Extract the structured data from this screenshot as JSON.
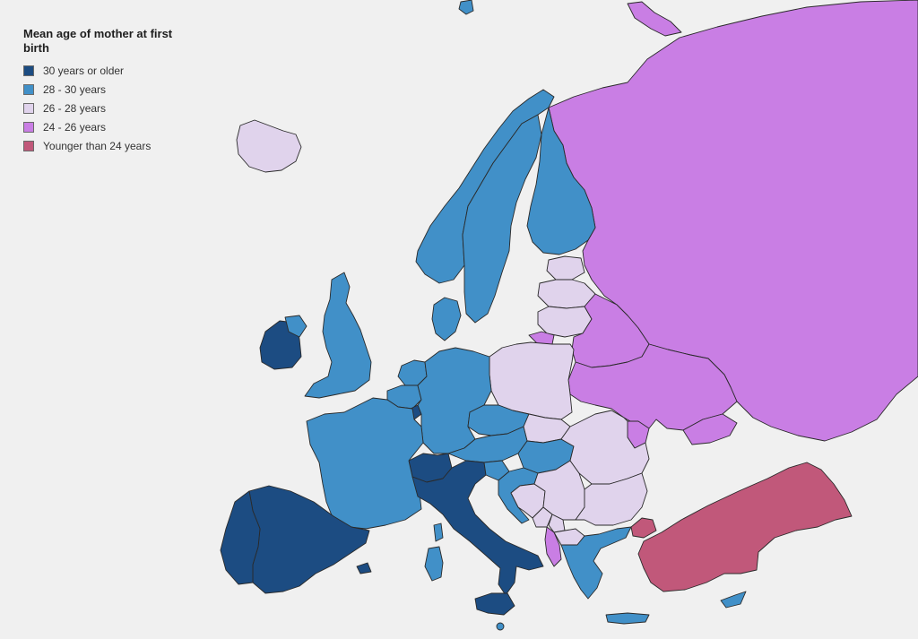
{
  "legend": {
    "title": "Mean age of mother at first birth",
    "items": [
      {
        "key": "c30",
        "label": "30 years or older",
        "color": "#1c4c82"
      },
      {
        "key": "c28",
        "label": "28 - 30 years",
        "color": "#4190c8"
      },
      {
        "key": "c26",
        "label": "26 - 28 years",
        "color": "#e0d3ec"
      },
      {
        "key": "c24",
        "label": "24 - 26 years",
        "color": "#c97ee4"
      },
      {
        "key": "cyoung",
        "label": "Younger than 24 years",
        "color": "#c1587a"
      }
    ]
  },
  "colors": {
    "background": "#f0f0f0",
    "border": "#2a2a2a"
  },
  "regions": [
    {
      "name": "russia",
      "category": "c24"
    },
    {
      "name": "iceland",
      "category": "c26"
    },
    {
      "name": "norway",
      "category": "c28"
    },
    {
      "name": "sweden",
      "category": "c28"
    },
    {
      "name": "finland",
      "category": "c28"
    },
    {
      "name": "denmark",
      "category": "c28"
    },
    {
      "name": "estonia",
      "category": "c26"
    },
    {
      "name": "latvia",
      "category": "c26"
    },
    {
      "name": "lithuania",
      "category": "c26"
    },
    {
      "name": "kaliningrad",
      "category": "c24"
    },
    {
      "name": "belarus",
      "category": "c24"
    },
    {
      "name": "ukraine",
      "category": "c24"
    },
    {
      "name": "moldova",
      "category": "c24"
    },
    {
      "name": "poland",
      "category": "c26"
    },
    {
      "name": "ireland",
      "category": "c30"
    },
    {
      "name": "northern-ireland",
      "category": "c28"
    },
    {
      "name": "united-kingdom",
      "category": "c28"
    },
    {
      "name": "netherlands",
      "category": "c28"
    },
    {
      "name": "belgium",
      "category": "c28"
    },
    {
      "name": "luxembourg",
      "category": "c30"
    },
    {
      "name": "germany",
      "category": "c28"
    },
    {
      "name": "czechia",
      "category": "c28"
    },
    {
      "name": "slovakia",
      "category": "c26"
    },
    {
      "name": "austria",
      "category": "c28"
    },
    {
      "name": "hungary",
      "category": "c28"
    },
    {
      "name": "switzerland",
      "category": "c30"
    },
    {
      "name": "france",
      "category": "c28"
    },
    {
      "name": "spain",
      "category": "c30"
    },
    {
      "name": "portugal",
      "category": "c30"
    },
    {
      "name": "italy",
      "category": "c30"
    },
    {
      "name": "sicily",
      "category": "c30"
    },
    {
      "name": "sardinia",
      "category": "c28"
    },
    {
      "name": "corsica",
      "category": "c28"
    },
    {
      "name": "balearic-islands",
      "category": "c30"
    },
    {
      "name": "slovenia",
      "category": "c28"
    },
    {
      "name": "croatia",
      "category": "c28"
    },
    {
      "name": "bosnia",
      "category": "c26"
    },
    {
      "name": "serbia",
      "category": "c26"
    },
    {
      "name": "montenegro",
      "category": "c26"
    },
    {
      "name": "kosovo",
      "category": "c26"
    },
    {
      "name": "albania",
      "category": "c24"
    },
    {
      "name": "north-macedonia",
      "category": "c26"
    },
    {
      "name": "romania",
      "category": "c26"
    },
    {
      "name": "bulgaria",
      "category": "c26"
    },
    {
      "name": "greece",
      "category": "c28"
    },
    {
      "name": "crete",
      "category": "c28"
    },
    {
      "name": "cyprus",
      "category": "c28"
    },
    {
      "name": "malta",
      "category": "c28"
    },
    {
      "name": "turkey",
      "category": "cyoung"
    },
    {
      "name": "turkey-thrace",
      "category": "cyoung"
    },
    {
      "name": "georgia",
      "category": "c24"
    },
    {
      "name": "svalbard",
      "category": "c28"
    },
    {
      "name": "novaya-zemlya",
      "category": "c24"
    }
  ]
}
